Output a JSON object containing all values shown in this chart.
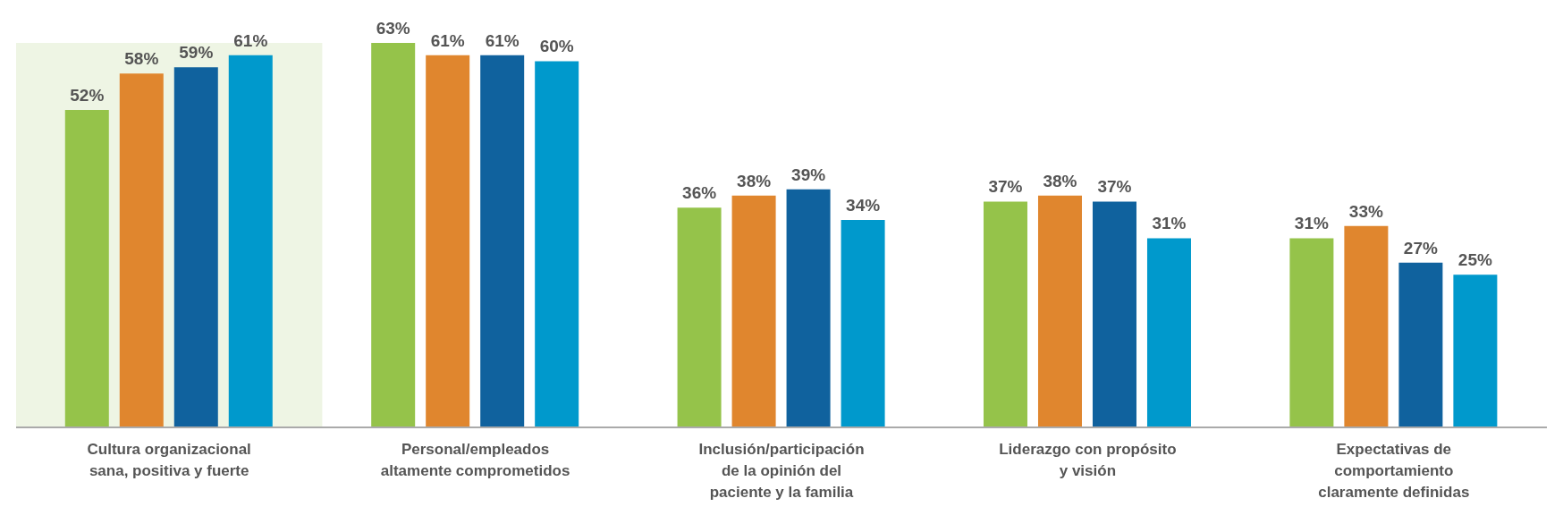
{
  "chart_data": {
    "type": "bar",
    "categories": [
      "Cultura organizacional sana, positiva y fuerte",
      "Personal/empleados altamente comprometidos",
      "Inclusión/participación de la opinión del paciente y la familia",
      "Liderazgo con propósito y visión",
      "Expectativas de comportamiento claramente definidas"
    ],
    "series": [
      {
        "color": "#95c34a",
        "values": [
          52,
          63,
          36,
          37,
          31
        ],
        "value_labels": [
          "52%",
          "63%",
          "36%",
          "37%",
          "31%"
        ]
      },
      {
        "color": "#e0862e",
        "values": [
          58,
          61,
          38,
          38,
          33
        ],
        "value_labels": [
          "58%",
          "61%",
          "38%",
          "38%",
          "33%"
        ]
      },
      {
        "color": "#10629e",
        "values": [
          59,
          61,
          39,
          37,
          27
        ],
        "value_labels": [
          "59%",
          "61%",
          "39%",
          "37%",
          "27%"
        ]
      },
      {
        "color": "#0099cc",
        "values": [
          61,
          60,
          34,
          31,
          25
        ],
        "value_labels": [
          "61%",
          "60%",
          "34%",
          "31%",
          "25%"
        ]
      }
    ],
    "bands": [
      {
        "axis": "x",
        "from": "Cultura organizacional sana, positiva y fuerte",
        "to": "Cultura organizacional sana, positiva y fuerte",
        "color": "#eef5e4"
      }
    ]
  }
}
